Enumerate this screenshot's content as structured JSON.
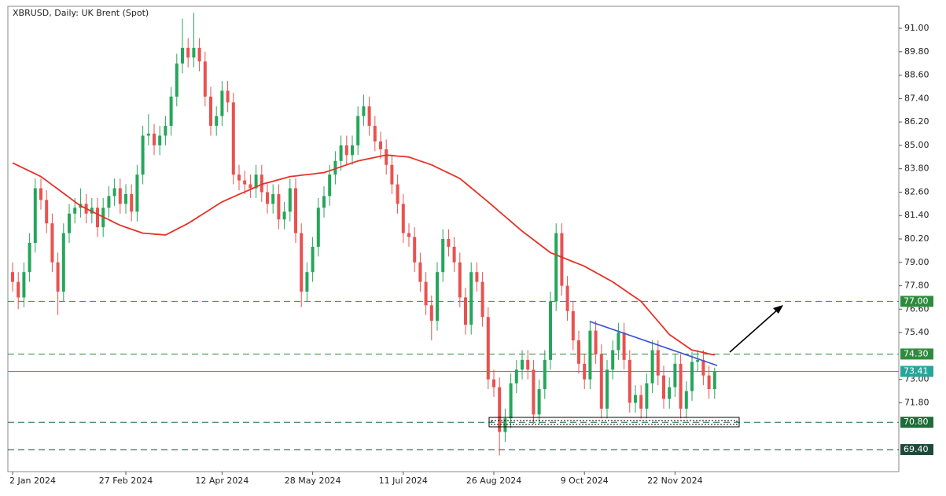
{
  "chart_data": {
    "type": "candlestick",
    "title": "XBRUSD, Daily:  UK Brent (Spot)",
    "categories": [
      "2 Jan 2024",
      null,
      null,
      null,
      null,
      null,
      null,
      null,
      null,
      null,
      null,
      null,
      null,
      null,
      null,
      null,
      null,
      null,
      null,
      null,
      "27 Feb 2024",
      null,
      null,
      null,
      null,
      null,
      null,
      null,
      null,
      null,
      null,
      null,
      null,
      null,
      null,
      null,
      null,
      "12 Apr 2024",
      null,
      null,
      null,
      null,
      null,
      null,
      null,
      null,
      null,
      null,
      null,
      null,
      null,
      null,
      null,
      "28 May 2024",
      null,
      null,
      null,
      null,
      null,
      null,
      null,
      null,
      null,
      null,
      null,
      null,
      null,
      null,
      null,
      "11 Jul 2024",
      null,
      null,
      null,
      null,
      null,
      null,
      null,
      null,
      null,
      null,
      null,
      null,
      null,
      null,
      null,
      "26 Aug 2024",
      null,
      null,
      null,
      null,
      null,
      null,
      null,
      null,
      null,
      null,
      null,
      null,
      null,
      null,
      null,
      "9 Oct 2024",
      null,
      null,
      null,
      null,
      null,
      null,
      null,
      null,
      null,
      null,
      null,
      null,
      null,
      null,
      null,
      "22 Nov 2024",
      null,
      null,
      null,
      null,
      null,
      null,
      null
    ],
    "open": [
      78.5,
      78.0,
      77.2,
      78.5,
      80.0,
      82.8,
      82.2,
      81.0,
      79.0,
      77.5,
      80.5,
      81.5,
      81.8,
      82.0,
      81.5,
      81.8,
      80.8,
      81.8,
      82.4,
      82.8,
      82.0,
      82.5,
      81.6,
      83.5,
      85.5,
      85.6,
      85.0,
      85.5,
      86.0,
      87.5,
      89.2,
      90.0,
      89.5,
      90.0,
      89.3,
      87.5,
      86.0,
      86.5,
      87.8,
      87.2,
      83.5,
      83.2,
      83.0,
      82.8,
      83.5,
      82.6,
      82.0,
      82.5,
      81.2,
      81.6,
      82.8,
      80.5,
      77.5,
      78.5,
      79.8,
      81.8,
      82.4,
      83.5,
      84.2,
      85.0,
      84.5,
      85.0,
      86.5,
      87.0,
      86.0,
      85.2,
      84.8,
      84.0,
      83.0,
      82.0,
      80.5,
      80.3,
      79.0,
      78.0,
      76.8,
      76.0,
      78.5,
      80.2,
      79.8,
      79.0,
      77.2,
      75.8,
      78.5,
      78.0,
      76.2,
      73.0,
      72.6,
      70.3,
      71.0,
      72.8,
      73.5,
      74.0,
      73.5,
      71.2,
      72.5,
      74.0,
      77.0,
      80.5,
      77.8,
      76.5,
      75.0,
      73.8,
      73.0,
      75.5,
      74.3,
      71.5,
      73.5,
      74.5,
      75.4,
      74.0,
      71.8,
      72.2,
      71.5,
      72.8,
      74.5,
      73.2,
      72.0,
      72.6,
      73.8,
      71.5,
      72.4,
      73.9,
      74.0,
      73.2,
      72.5
    ],
    "high": [
      79.0,
      78.5,
      79.0,
      80.5,
      83.3,
      83.3,
      82.7,
      81.5,
      79.5,
      81.0,
      82.0,
      82.3,
      82.8,
      82.5,
      82.3,
      82.3,
      82.3,
      82.9,
      83.3,
      83.3,
      83.0,
      83.0,
      84.0,
      86.0,
      86.6,
      86.1,
      86.0,
      86.5,
      88.0,
      89.7,
      91.5,
      90.5,
      91.8,
      90.5,
      89.8,
      88.0,
      87.0,
      88.3,
      88.3,
      87.7,
      84.0,
      83.7,
      83.5,
      84.0,
      84.0,
      83.1,
      83.0,
      83.0,
      82.1,
      83.3,
      83.3,
      81.0,
      79.0,
      80.3,
      82.3,
      82.9,
      84.0,
      84.7,
      85.5,
      85.5,
      85.5,
      87.0,
      87.6,
      87.5,
      86.5,
      85.7,
      85.3,
      84.5,
      83.5,
      82.5,
      81.0,
      80.8,
      79.5,
      78.5,
      77.3,
      79.0,
      80.7,
      80.7,
      80.3,
      79.5,
      77.7,
      79.0,
      79.0,
      78.5,
      76.7,
      73.5,
      73.1,
      71.5,
      73.3,
      74.0,
      74.5,
      74.5,
      74.0,
      73.0,
      74.5,
      77.5,
      81.0,
      81.0,
      78.3,
      77.0,
      75.5,
      74.3,
      76.0,
      76.0,
      74.8,
      74.0,
      75.0,
      75.9,
      75.9,
      74.5,
      72.7,
      72.7,
      73.3,
      75.0,
      75.0,
      73.7,
      73.1,
      74.3,
      74.3,
      72.9,
      74.4,
      74.5,
      74.5,
      73.7,
      73.6
    ],
    "low": [
      77.5,
      76.6,
      76.7,
      78.0,
      79.5,
      81.7,
      80.5,
      78.5,
      76.3,
      77.0,
      80.0,
      81.0,
      81.3,
      81.0,
      81.0,
      80.3,
      80.3,
      81.3,
      81.9,
      81.5,
      81.5,
      81.1,
      81.1,
      83.0,
      85.0,
      84.5,
      84.5,
      85.0,
      85.5,
      87.0,
      88.7,
      89.0,
      89.0,
      88.8,
      87.0,
      85.5,
      85.5,
      86.0,
      86.7,
      83.0,
      82.7,
      82.5,
      82.3,
      82.3,
      82.1,
      81.5,
      81.5,
      80.7,
      80.7,
      81.1,
      80.0,
      76.7,
      77.0,
      78.0,
      79.3,
      81.3,
      81.9,
      83.0,
      83.7,
      84.0,
      84.0,
      84.5,
      86.0,
      85.5,
      84.7,
      84.3,
      83.5,
      82.5,
      81.5,
      80.0,
      79.8,
      78.5,
      77.5,
      76.3,
      75.0,
      75.5,
      78.0,
      79.3,
      78.5,
      76.7,
      75.3,
      75.3,
      77.5,
      75.7,
      72.5,
      72.1,
      69.1,
      69.8,
      70.5,
      72.3,
      73.0,
      73.0,
      70.7,
      70.7,
      72.0,
      73.5,
      76.5,
      77.3,
      76.0,
      74.5,
      73.3,
      72.5,
      72.5,
      73.8,
      71.0,
      71.0,
      73.0,
      74.0,
      73.5,
      71.3,
      71.3,
      71.0,
      71.0,
      72.3,
      72.7,
      71.5,
      71.5,
      72.1,
      71.0,
      71.0,
      71.9,
      73.4,
      72.7,
      72.0,
      72.0
    ],
    "close": [
      78.0,
      77.2,
      78.5,
      80.0,
      82.8,
      82.2,
      81.0,
      79.0,
      77.5,
      80.5,
      81.5,
      81.8,
      82.0,
      81.5,
      81.8,
      80.8,
      81.8,
      82.4,
      82.8,
      82.0,
      82.5,
      81.6,
      83.5,
      85.5,
      85.6,
      85.0,
      85.5,
      86.0,
      87.5,
      89.2,
      90.0,
      89.5,
      90.0,
      89.3,
      87.5,
      86.0,
      86.5,
      87.8,
      87.2,
      83.5,
      83.2,
      83.0,
      82.8,
      83.5,
      82.6,
      82.0,
      82.5,
      81.2,
      81.6,
      82.8,
      80.5,
      77.5,
      78.5,
      79.8,
      81.8,
      82.4,
      83.5,
      84.2,
      85.0,
      84.5,
      85.0,
      86.5,
      87.0,
      86.0,
      85.2,
      84.8,
      84.0,
      83.0,
      82.0,
      80.5,
      80.3,
      79.0,
      78.0,
      76.8,
      76.0,
      78.5,
      80.2,
      79.8,
      79.0,
      77.2,
      75.8,
      78.5,
      78.0,
      76.2,
      73.0,
      72.6,
      70.3,
      71.0,
      72.8,
      73.5,
      74.0,
      73.5,
      71.2,
      72.5,
      74.0,
      77.0,
      80.5,
      77.8,
      76.5,
      75.0,
      73.8,
      73.0,
      75.5,
      74.3,
      71.5,
      73.5,
      74.5,
      75.4,
      74.0,
      71.8,
      72.2,
      71.5,
      72.8,
      74.5,
      73.2,
      72.0,
      72.6,
      73.8,
      71.5,
      72.4,
      73.9,
      74.0,
      73.2,
      72.5,
      73.41
    ],
    "up_color": "#26a65b",
    "down_color": "#e8524f",
    "moving_average": {
      "color": "#e53226",
      "values": [
        84.1,
        83.96,
        83.82,
        83.68,
        83.54,
        83.4,
        83.19,
        82.97,
        82.76,
        82.54,
        82.33,
        82.11,
        81.9,
        81.76,
        81.61,
        81.47,
        81.33,
        81.19,
        81.04,
        80.9,
        80.8,
        80.7,
        80.6,
        80.5,
        80.48,
        80.45,
        80.43,
        80.4,
        80.55,
        80.7,
        80.85,
        81.0,
        81.18,
        81.37,
        81.55,
        81.73,
        81.92,
        82.1,
        82.23,
        82.36,
        82.49,
        82.61,
        82.74,
        82.87,
        83.0,
        83.08,
        83.16,
        83.24,
        83.32,
        83.4,
        83.43,
        83.47,
        83.5,
        83.53,
        83.57,
        83.6,
        83.7,
        83.8,
        83.9,
        84.0,
        84.1,
        84.2,
        84.26,
        84.32,
        84.38,
        84.44,
        84.5,
        84.48,
        84.45,
        84.43,
        84.4,
        84.3,
        84.2,
        84.1,
        84.0,
        83.86,
        83.72,
        83.58,
        83.44,
        83.3,
        83.06,
        82.82,
        82.58,
        82.34,
        82.1,
        81.85,
        81.6,
        81.35,
        81.1,
        80.85,
        80.6,
        80.38,
        80.16,
        79.94,
        79.72,
        79.5,
        79.38,
        79.27,
        79.15,
        79.03,
        78.92,
        78.8,
        78.64,
        78.48,
        78.32,
        78.16,
        78.0,
        77.8,
        77.6,
        77.4,
        77.2,
        77.0,
        76.66,
        76.32,
        75.98,
        75.64,
        75.3,
        75.1,
        74.9,
        74.7,
        74.5,
        74.44,
        74.38,
        74.31,
        74.25
      ]
    },
    "levels": [
      {
        "value": 77,
        "label": "77.00",
        "color": "#2e8b3e",
        "style": "dashed"
      },
      {
        "value": 74.3,
        "label": "74.30",
        "color": "#2e8b3e",
        "style": "dashed"
      },
      {
        "value": 73.41,
        "label": "73.41",
        "color": "#26a69a",
        "style": "solid"
      },
      {
        "value": 70.8,
        "label": "70.80",
        "color": "#1f6b3a",
        "style": "dashed"
      },
      {
        "value": 69.4,
        "label": "69.40",
        "color": "#1d4a3a",
        "style": "dashed"
      }
    ],
    "ylim": [
      68.27,
      92.13
    ],
    "yticks": [
      {
        "value": 91,
        "label": "91.00"
      },
      {
        "value": 89.8,
        "label": "89.80"
      },
      {
        "value": 88.6,
        "label": "88.60"
      },
      {
        "value": 87.4,
        "label": "87.40"
      },
      {
        "value": 86.2,
        "label": "86.20"
      },
      {
        "value": 85,
        "label": "85.00"
      },
      {
        "value": 83.8,
        "label": "83.80"
      },
      {
        "value": 82.6,
        "label": "82.60"
      },
      {
        "value": 81.4,
        "label": "81.40"
      },
      {
        "value": 80.2,
        "label": "80.20"
      },
      {
        "value": 79,
        "label": "79.00"
      },
      {
        "value": 77.8,
        "label": "77.80"
      },
      {
        "value": 76.6,
        "label": "76.60"
      },
      {
        "value": 75.4,
        "label": "75.40"
      },
      {
        "value": 73,
        "label": "73.00"
      },
      {
        "value": 71.8,
        "label": "71.80"
      }
    ],
    "grid": false
  }
}
